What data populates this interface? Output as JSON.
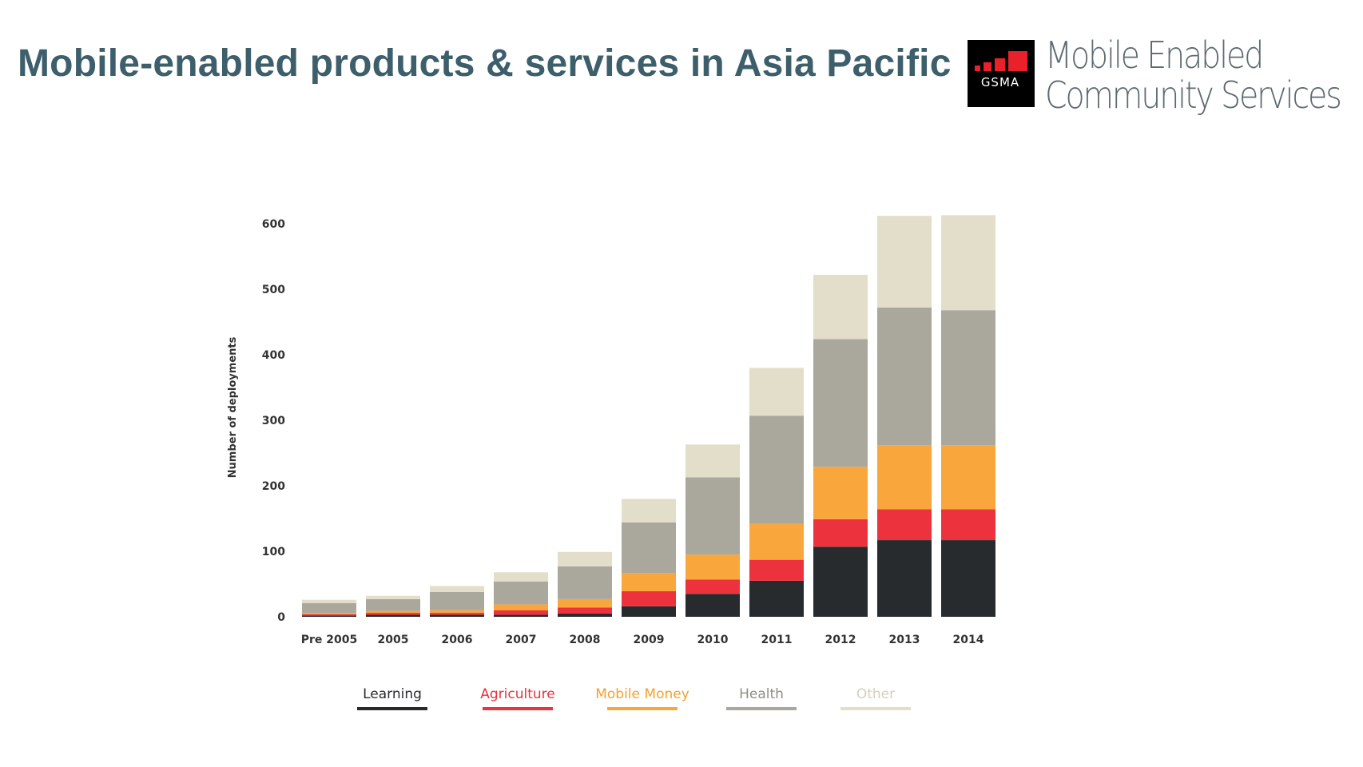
{
  "slide": {
    "title": "Mobile-enabled products & services in Asia Pacific"
  },
  "brand": {
    "logo_text": "GSMA",
    "line1": "Mobile Enabled",
    "line2": "Community Services",
    "logo_colors": {
      "background": "#000000",
      "bars": "#e8212b",
      "text": "#ffffff"
    }
  },
  "chart_data": {
    "type": "bar",
    "stacked": true,
    "categories": [
      "Pre 2005",
      "2005",
      "2006",
      "2007",
      "2008",
      "2009",
      "2010",
      "2011",
      "2012",
      "2013",
      "2014"
    ],
    "ylabel": "Number of deployments",
    "xlabel": "",
    "ylim": [
      0,
      600
    ],
    "yticks": [
      0,
      100,
      200,
      300,
      400,
      500,
      600
    ],
    "grid": false,
    "legend_position": "bottom",
    "series": [
      {
        "name": "Learning",
        "color": "#282b2e",
        "legend_text_color": "#282b2e",
        "values": [
          2,
          3,
          3,
          3,
          5,
          16,
          35,
          55,
          107,
          117,
          117
        ]
      },
      {
        "name": "Agriculture",
        "color": "#ec323d",
        "legend_text_color": "#e8323c",
        "values": [
          2,
          3,
          3,
          7,
          9,
          23,
          22,
          32,
          42,
          47,
          47
        ]
      },
      {
        "name": "Mobile Money",
        "color": "#f9a63d",
        "legend_text_color": "#f5a030",
        "values": [
          2,
          3,
          4,
          9,
          13,
          28,
          38,
          55,
          80,
          98,
          98
        ]
      },
      {
        "name": "Health",
        "color": "#aaa89c",
        "legend_text_color": "#8e8d85",
        "values": [
          15,
          18,
          28,
          35,
          50,
          77,
          118,
          165,
          195,
          210,
          206
        ]
      },
      {
        "name": "Other",
        "color": "#e3dec9",
        "legend_text_color": "#d6d0ba",
        "values": [
          5,
          5,
          9,
          14,
          22,
          36,
          50,
          73,
          98,
          140,
          145
        ]
      }
    ]
  }
}
